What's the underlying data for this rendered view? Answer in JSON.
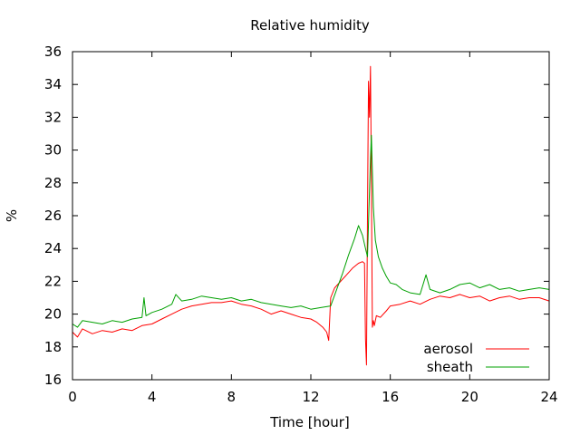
{
  "chart_data": {
    "type": "line",
    "title": "Relative humidity",
    "xlabel": "Time [hour]",
    "ylabel": "%",
    "xlim": [
      0,
      24
    ],
    "ylim": [
      16,
      36
    ],
    "xticks": [
      0,
      4,
      8,
      12,
      16,
      20,
      24
    ],
    "yticks": [
      16,
      18,
      20,
      22,
      24,
      26,
      28,
      30,
      32,
      34,
      36
    ],
    "grid": false,
    "legend_position": "bottom-right",
    "series": [
      {
        "name": "aerosol",
        "color": "#ff0000",
        "x": [
          0,
          0.25,
          0.5,
          1,
          1.5,
          2,
          2.5,
          3,
          3.5,
          4,
          4.5,
          5,
          5.5,
          6,
          6.5,
          7,
          7.5,
          8,
          8.5,
          9,
          9.5,
          10,
          10.5,
          11,
          11.5,
          12,
          12.3,
          12.6,
          12.8,
          12.9,
          13.0,
          13.2,
          13.5,
          13.8,
          14.1,
          14.4,
          14.6,
          14.7,
          14.75,
          14.8,
          14.85,
          14.9,
          14.95,
          15.0,
          15.05,
          15.1,
          15.15,
          15.2,
          15.3,
          15.5,
          15.8,
          16,
          16.5,
          17,
          17.5,
          18,
          18.5,
          19,
          19.5,
          20,
          20.5,
          21,
          21.5,
          22,
          22.5,
          23,
          23.5,
          24
        ],
        "y": [
          18.9,
          18.6,
          19.1,
          18.8,
          19.0,
          18.9,
          19.1,
          19.0,
          19.3,
          19.4,
          19.7,
          20.0,
          20.3,
          20.5,
          20.6,
          20.7,
          20.7,
          20.8,
          20.6,
          20.5,
          20.3,
          20.0,
          20.2,
          20.0,
          19.8,
          19.7,
          19.5,
          19.2,
          18.9,
          18.4,
          21.0,
          21.6,
          22.0,
          22.4,
          22.8,
          23.1,
          23.2,
          23.1,
          18.5,
          16.9,
          26.0,
          34.2,
          32.0,
          35.1,
          28.0,
          19.2,
          19.6,
          19.3,
          19.9,
          19.8,
          20.2,
          20.5,
          20.6,
          20.8,
          20.6,
          20.9,
          21.1,
          21.0,
          21.2,
          21.0,
          21.1,
          20.8,
          21.0,
          21.1,
          20.9,
          21.0,
          21.0,
          20.8
        ]
      },
      {
        "name": "sheath",
        "color": "#00a000",
        "x": [
          0,
          0.25,
          0.5,
          1,
          1.5,
          2,
          2.5,
          3,
          3.5,
          3.6,
          3.7,
          4,
          4.5,
          5,
          5.2,
          5.5,
          6,
          6.5,
          7,
          7.5,
          8,
          8.5,
          9,
          9.5,
          10,
          10.5,
          11,
          11.5,
          12,
          12.5,
          13.0,
          13.3,
          13.6,
          13.9,
          14.2,
          14.4,
          14.6,
          14.75,
          14.85,
          14.95,
          15.0,
          15.05,
          15.15,
          15.25,
          15.4,
          15.6,
          15.8,
          16.0,
          16.3,
          16.6,
          17,
          17.5,
          17.8,
          18,
          18.5,
          19,
          19.5,
          20,
          20.5,
          21,
          21.5,
          22,
          22.5,
          23,
          23.5,
          24
        ],
        "y": [
          19.4,
          19.2,
          19.6,
          19.5,
          19.4,
          19.6,
          19.5,
          19.7,
          19.8,
          21.0,
          19.9,
          20.1,
          20.3,
          20.6,
          21.2,
          20.8,
          20.9,
          21.1,
          21.0,
          20.9,
          21.0,
          20.8,
          20.9,
          20.7,
          20.6,
          20.5,
          20.4,
          20.5,
          20.3,
          20.4,
          20.5,
          21.5,
          22.5,
          23.6,
          24.6,
          25.4,
          24.8,
          24.0,
          23.5,
          27.5,
          29.5,
          30.9,
          26.5,
          24.5,
          23.5,
          22.8,
          22.3,
          21.9,
          21.8,
          21.5,
          21.3,
          21.2,
          22.4,
          21.5,
          21.3,
          21.5,
          21.8,
          21.9,
          21.6,
          21.8,
          21.5,
          21.6,
          21.4,
          21.5,
          21.6,
          21.5
        ]
      }
    ]
  }
}
